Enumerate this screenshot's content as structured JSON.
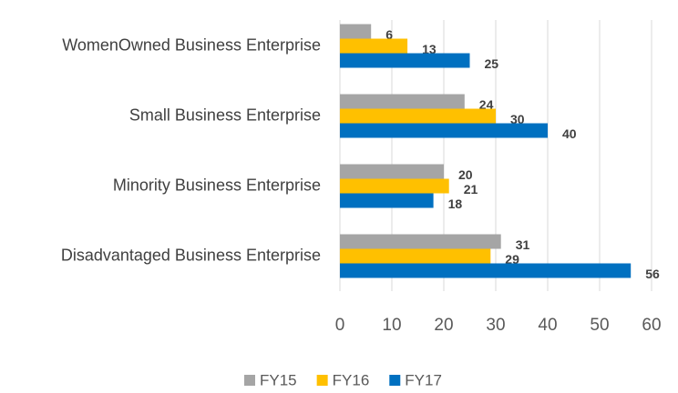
{
  "chart_data": {
    "type": "hbar",
    "categories": [
      "WomenOwned Business Enterprise",
      "Small Business Enterprise",
      "Minority Business Enterprise",
      "Disadvantaged Business Enterprise"
    ],
    "series": [
      {
        "name": "FY15",
        "color": "#a5a5a5",
        "values": [
          6,
          24,
          20,
          31
        ]
      },
      {
        "name": "FY16",
        "color": "#ffc000",
        "values": [
          13,
          30,
          21,
          29
        ]
      },
      {
        "name": "FY17",
        "color": "#0070c0",
        "values": [
          25,
          40,
          18,
          56
        ]
      }
    ],
    "xlim": [
      0,
      60
    ],
    "xticks": [
      0,
      10,
      20,
      30,
      40,
      50,
      60
    ],
    "grid": true,
    "legend": "bottom"
  }
}
